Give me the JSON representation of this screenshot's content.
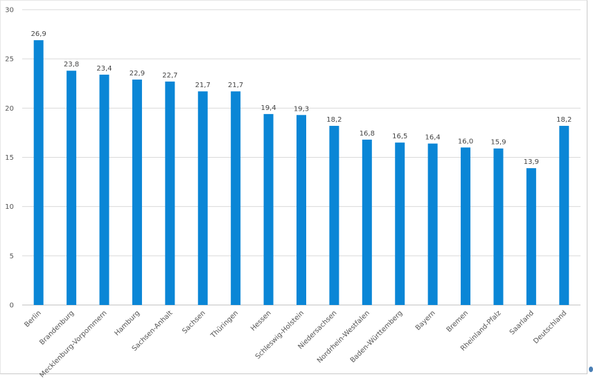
{
  "chart_data": {
    "type": "bar",
    "categories": [
      "Berlin",
      "Brandenburg",
      "Mecklenburg-Vorpommern",
      "Hamburg",
      "Sachsen-Anhalt",
      "Sachsen",
      "Thüringen",
      "Hessen",
      "Schleswig-Holstein",
      "Niedersachsen",
      "Nordrhein-Westfalen",
      "Baden-Württemberg",
      "Bayern",
      "Bremen",
      "Rheinland-Pfalz",
      "Saarland",
      "Deutschland"
    ],
    "values": [
      26.9,
      23.8,
      23.4,
      22.9,
      22.7,
      21.7,
      21.7,
      19.4,
      19.3,
      18.2,
      16.8,
      16.5,
      16.4,
      16.0,
      15.9,
      13.9,
      18.2
    ],
    "value_labels": [
      "26,9",
      "23,8",
      "23,4",
      "22,9",
      "22,7",
      "21,7",
      "21,7",
      "19,4",
      "19,3",
      "18,2",
      "16,8",
      "16,5",
      "16,4",
      "16,0",
      "15,9",
      "13,9",
      "18,2"
    ],
    "yticks": [
      "0",
      "5",
      "10",
      "15",
      "20",
      "25",
      "30"
    ],
    "ylim": [
      0,
      30
    ],
    "grid": true,
    "legend": "none",
    "bar_color": "#0a86d6",
    "grid_color": "#d9d9d9",
    "axis_color": "#bfbfbf",
    "text_color": "#444444"
  }
}
